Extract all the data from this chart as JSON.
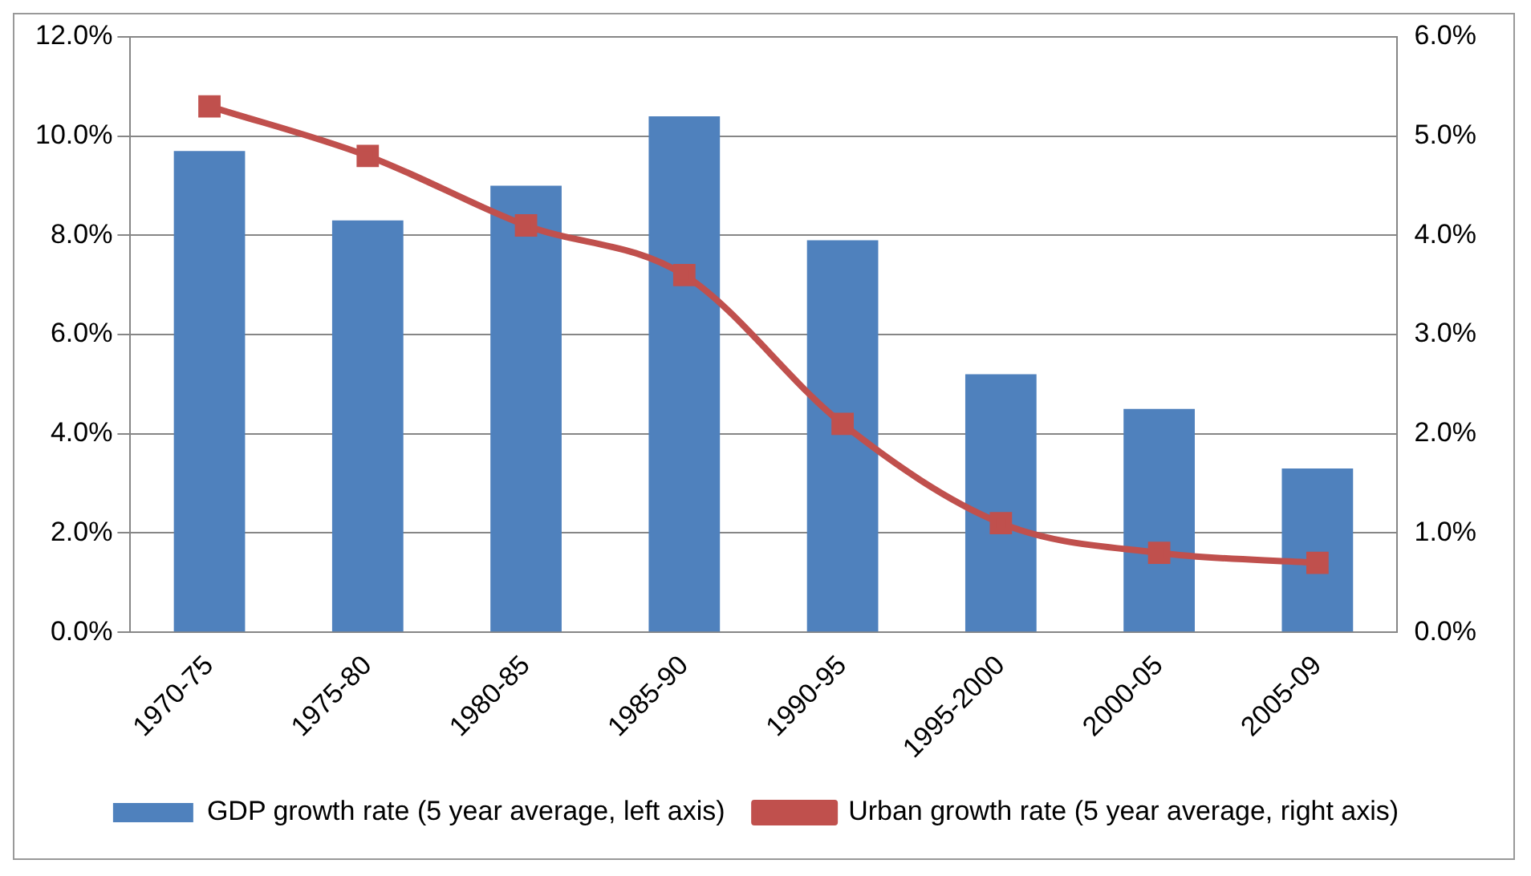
{
  "chart_data": {
    "type": "bar",
    "categories": [
      "1970-75",
      "1975-80",
      "1980-85",
      "1985-90",
      "1990-95",
      "1995-2000",
      "2000-05",
      "2005-09"
    ],
    "series": [
      {
        "name": "GDP growth rate (5 year average, left axis)",
        "color": "#4f81bd",
        "values": [
          9.7,
          8.3,
          9.0,
          10.4,
          7.9,
          5.2,
          4.5,
          3.3
        ]
      },
      {
        "name": "Urban growth rate (5 year average, right axis)",
        "type": "line",
        "axis": "y2",
        "color": "#c0504d",
        "marker": "square",
        "line_style": "solid",
        "values": [
          5.3,
          4.8,
          4.1,
          3.6,
          2.1,
          1.1,
          0.8,
          0.7
        ]
      }
    ],
    "ylim": [
      0,
      12
    ],
    "yticks": [
      {
        "value": 0,
        "label": "0.0%"
      },
      {
        "value": 2,
        "label": "2.0%"
      },
      {
        "value": 4,
        "label": "4.0%"
      },
      {
        "value": 6,
        "label": "6.0%"
      },
      {
        "value": 8,
        "label": "8.0%"
      },
      {
        "value": 10,
        "label": "10.0%"
      },
      {
        "value": 12,
        "label": "12.0%"
      }
    ],
    "y2lim": [
      0,
      6
    ],
    "y2ticks": [
      {
        "value": 0,
        "label": "0.0%"
      },
      {
        "value": 1,
        "label": "1.0%"
      },
      {
        "value": 2,
        "label": "2.0%"
      },
      {
        "value": 3,
        "label": "3.0%"
      },
      {
        "value": 4,
        "label": "4.0%"
      },
      {
        "value": 5,
        "label": "5.0%"
      },
      {
        "value": 6,
        "label": "6.0%"
      }
    ],
    "grid": "y",
    "legend": "bottom"
  }
}
